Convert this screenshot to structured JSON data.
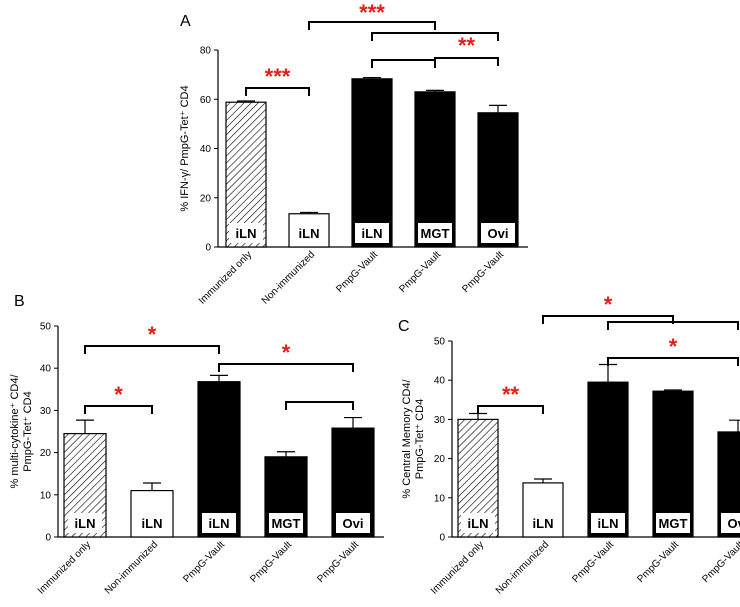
{
  "chart_data": [
    {
      "type": "bar",
      "panel": "A",
      "ylabel_html": "% IFN-γ/ PmpG-Tet⁺ CD4",
      "ylabel": "% IFN-γ/ PmpG-Tet⁺ CD4",
      "ylim": [
        0,
        80
      ],
      "yticks": [
        0,
        20,
        40,
        60,
        80
      ],
      "categories": [
        "Immunized only",
        "Non-immunized",
        "PmpG-Vault",
        "PmpG-Vault",
        "PmpG-Vault"
      ],
      "bar_labels": [
        "iLN",
        "iLN",
        "iLN",
        "MGT",
        "Ovi"
      ],
      "bar_styles": [
        "hatched",
        "white",
        "black",
        "black",
        "black"
      ],
      "values": [
        58.8,
        13.5,
        68.3,
        63.0,
        54.5
      ],
      "errors": [
        0.5,
        0.5,
        0.5,
        0.6,
        3.0
      ],
      "significance": [
        {
          "from": 0,
          "to": 1,
          "label": "***"
        },
        {
          "from": 1,
          "to": 3,
          "label": "***"
        },
        {
          "from": 2,
          "to": 4,
          "label": ""
        },
        {
          "from": 2,
          "to": 3,
          "label": ""
        },
        {
          "from": 3,
          "to": 4,
          "label": "**"
        }
      ]
    },
    {
      "type": "bar",
      "panel": "B",
      "ylabel": "% multi-cytokine⁺ CD4/ PmpG-Tet⁺ CD4",
      "ylabel_lines": [
        "% multi-cytokine⁺ CD4/",
        "PmpG-Tet⁺ CD4"
      ],
      "ylim": [
        0,
        50
      ],
      "yticks": [
        0,
        10,
        20,
        30,
        40,
        50
      ],
      "categories": [
        "Immunized only",
        "Non-immunized",
        "PmpG-Vault",
        "PmpG-Vault",
        "PmpG-Vault"
      ],
      "bar_labels": [
        "iLN",
        "iLN",
        "iLN",
        "MGT",
        "Ovi"
      ],
      "bar_styles": [
        "hatched",
        "white",
        "black",
        "black",
        "black"
      ],
      "values": [
        24.5,
        11.0,
        36.8,
        19.0,
        25.8
      ],
      "errors": [
        3.2,
        1.8,
        1.5,
        1.2,
        2.5
      ],
      "significance": [
        {
          "from": 0,
          "to": 1,
          "label": "*"
        },
        {
          "from": 0,
          "to": 2,
          "label": "*"
        },
        {
          "from": 2,
          "to": 4,
          "label": "*"
        },
        {
          "from": 3,
          "to": 4,
          "label": ""
        }
      ]
    },
    {
      "type": "bar",
      "panel": "C",
      "ylabel": "% Central Memory CD4/ PmpG-Tet⁺ CD4",
      "ylabel_lines": [
        "% Central Memory CD4/",
        "PmpG-Tet⁺ CD4"
      ],
      "ylim": [
        0,
        50
      ],
      "yticks": [
        0,
        10,
        20,
        30,
        40,
        50
      ],
      "categories": [
        "Immunized only",
        "Non-immunized",
        "PmpG-Vault",
        "PmpG-Vault",
        "PmpG-Vault"
      ],
      "bar_labels": [
        "iLN",
        "iLN",
        "iLN",
        "MGT",
        "Ovi"
      ],
      "bar_styles": [
        "hatched",
        "white",
        "black",
        "black",
        "black"
      ],
      "values": [
        30.0,
        13.8,
        39.5,
        37.2,
        26.8
      ],
      "errors": [
        1.5,
        1.0,
        4.5,
        0.3,
        3.0
      ],
      "significance": [
        {
          "from": 0,
          "to": 1,
          "label": "**"
        },
        {
          "from": 1,
          "to": 3,
          "label": "*"
        },
        {
          "from": 2,
          "to": 4,
          "label": ""
        },
        {
          "from": 2,
          "to": 4,
          "label": "*"
        }
      ]
    }
  ],
  "colors": {
    "star": "#e0201b",
    "bar": "#000000",
    "axis": "#000000"
  }
}
